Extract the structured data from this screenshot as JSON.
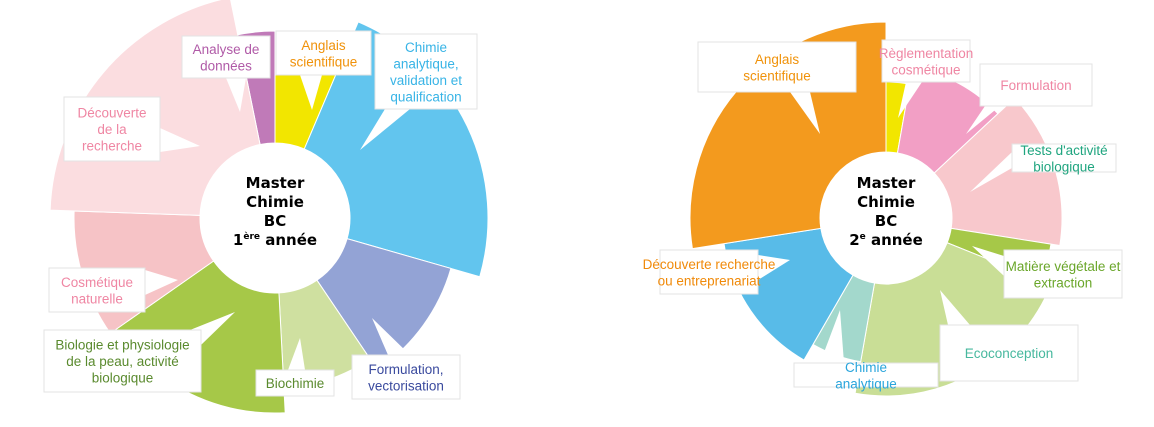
{
  "chart_data": [
    {
      "type": "sunburst-callout",
      "center": {
        "lines": [
          "Master",
          "Chimie",
          "BC"
        ],
        "year_number": "1",
        "year_sup": "ère",
        "year_word": " année"
      },
      "segments": [
        {
          "label": "Analyse de données",
          "lines": [
            "Analyse de",
            "données"
          ],
          "color": "#c07ab8",
          "text_color": "#b05aa7",
          "start": 348.5,
          "end": 360,
          "r": 112
        },
        {
          "label": "Anglais scientifique",
          "lines": [
            "Anglais",
            "scientifique"
          ],
          "color": "#f2e600",
          "text_color": "#f0920a",
          "start": 0,
          "end": 23,
          "r": 102
        },
        {
          "label": "Chimie analytique, validation et qualification",
          "lines": [
            "Chimie",
            "analytique,",
            "validation et",
            "qualification"
          ],
          "color": "#62c5ee",
          "text_color": "#38b4e6",
          "start": 23,
          "end": 106,
          "r": 138
        },
        {
          "label": "Formulation, vectorisation",
          "lines": [
            "Formulation,",
            "vectorisation"
          ],
          "color": "#93a3d5",
          "text_color": "#3a4a9e",
          "start": 106,
          "end": 146,
          "r": 108
        },
        {
          "label": "Biochimie",
          "lines": [
            "Biochimie"
          ],
          "color": "#cfe0a0",
          "text_color": "#5a8a2e",
          "start": 146,
          "end": 177,
          "r": 95
        },
        {
          "label": "Biologie et physiologie de la peau, activité biologique",
          "lines": [
            "Biologie et physiologie",
            "de la peau, activité",
            "biologique"
          ],
          "color": "#a6c848",
          "text_color": "#5a8a2e",
          "start": 177,
          "end": 235,
          "r": 120
        },
        {
          "label": "Cosmétique naturelle",
          "lines": [
            "Cosmétique",
            "naturelle"
          ],
          "color": "#f6c3c6",
          "text_color": "#ef86a3",
          "start": 235,
          "end": 272,
          "r": 126
        },
        {
          "label": "Découverte de la recherche",
          "lines": [
            "Découverte",
            "de la",
            "recherche"
          ],
          "color": "#fbdde0",
          "text_color": "#ef86a3",
          "start": 272,
          "end": 348.5,
          "r": 150
        }
      ]
    },
    {
      "type": "sunburst-callout",
      "center": {
        "lines": [
          "Master",
          "Chimie",
          "BC"
        ],
        "year_number": "2",
        "year_sup": "e",
        "year_word": " année"
      },
      "segments": [
        {
          "label": "Anglais scientifique",
          "lines": [
            "Anglais",
            "scientifique"
          ],
          "color": "#f2e600",
          "text_color": "#f0920a",
          "start": 0,
          "end": 10,
          "r": 70
        },
        {
          "label": "Règlementation cosmétique",
          "lines": [
            "Règlementation",
            "cosmétique"
          ],
          "color": "#f29fc5",
          "text_color": "#ef86a3",
          "start": 10,
          "end": 47,
          "r": 87
        },
        {
          "label": "Formulation",
          "lines": [
            "Formulation"
          ],
          "color": "#f8c8cc",
          "text_color": "#ef86a3",
          "start": 47,
          "end": 99,
          "r": 110
        },
        {
          "label": "Tests d'activité biologique",
          "lines": [
            "Tests d'activité",
            "biologique"
          ],
          "color": "#a6c848",
          "text_color": "#1fa57f",
          "start": 99,
          "end": 112,
          "r": 101
        },
        {
          "label": "Matière végétale et extraction",
          "lines": [
            "Matière végétale et",
            "extraction"
          ],
          "color": "#c9de96",
          "text_color": "#6aa62a",
          "start": 112,
          "end": 190,
          "r": 112
        },
        {
          "label": "Ecoconception",
          "lines": [
            "Ecoconception"
          ],
          "color": "#a3d8cc",
          "text_color": "#47b89e",
          "start": 190,
          "end": 210,
          "r": 80
        },
        {
          "label": "Chimie analytique",
          "lines": [
            "Chimie",
            "analytique"
          ],
          "color": "#58bbe8",
          "text_color": "#2aa5dc",
          "start": 210,
          "end": 261,
          "r": 98
        },
        {
          "label": "Découverte recherche ou entreprenariat",
          "lines": [
            "Découverte recherche",
            "ou entreprenariat"
          ],
          "color": "#f39a1e",
          "text_color": "#f08a0a",
          "start": 261,
          "end": 360,
          "r": 130
        }
      ]
    }
  ]
}
